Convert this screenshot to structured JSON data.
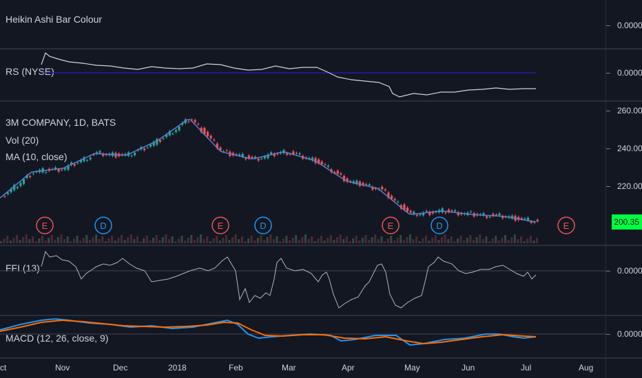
{
  "panes": {
    "heikin": {
      "title": "Heikin Ashi Bar Colour",
      "axis_value": "0.0000"
    },
    "rs": {
      "title": "RS (NYSE)",
      "axis_value": "0.0000"
    },
    "main": {
      "title": "3M COMPANY, 1D, BATS",
      "vol_label": "Vol (20)",
      "ma_label": "MA (10, close)",
      "axis_ticks": [
        "260.00",
        "240.00",
        "220.00"
      ],
      "last_price": "200.35"
    },
    "ffi": {
      "title": "FFI (13)",
      "axis_value": "0.0000"
    },
    "macd": {
      "title": "MACD (12, 26, close, 9)",
      "axis_value": "0.0000"
    }
  },
  "events": [
    {
      "letter": "E",
      "type": "earnings"
    },
    {
      "letter": "D",
      "type": "dividend"
    },
    {
      "letter": "E",
      "type": "earnings"
    },
    {
      "letter": "D",
      "type": "dividend"
    },
    {
      "letter": "E",
      "type": "earnings"
    },
    {
      "letter": "D",
      "type": "dividend"
    },
    {
      "letter": "E",
      "type": "earnings"
    }
  ],
  "x_axis": [
    "ct",
    "Nov",
    "Dec",
    "2018",
    "Feb",
    "Mar",
    "Apr",
    "May",
    "Jun",
    "Jul",
    "Aug"
  ],
  "colors": {
    "background": "#131722",
    "up": "#26a69a",
    "down": "#ef5350",
    "ma": "#5b7cd6",
    "earnings": "#ef5350",
    "dividend": "#2196f3",
    "last_price_bg": "#00ff41",
    "macd_line": "#2196f3",
    "signal_line": "#ff6d00"
  },
  "chart_data": {
    "type": "line",
    "title": "3M COMPANY, 1D, BATS",
    "x": [
      "2017-10-25",
      "2017-11-10",
      "2017-11-25",
      "2017-12-10",
      "2017-12-25",
      "2018-01-10",
      "2018-01-25",
      "2018-02-05",
      "2018-02-20",
      "2018-03-05",
      "2018-03-20",
      "2018-04-05",
      "2018-04-20",
      "2018-05-05",
      "2018-05-20",
      "2018-06-05",
      "2018-06-20",
      "2018-07-05"
    ],
    "ylim": [
      200,
      262
    ],
    "series": [
      {
        "values": [
          213,
          227,
          229,
          237,
          236,
          244,
          256,
          238,
          234,
          238,
          233,
          222,
          218,
          204,
          206,
          204,
          203,
          200
        ]
      }
    ]
  }
}
